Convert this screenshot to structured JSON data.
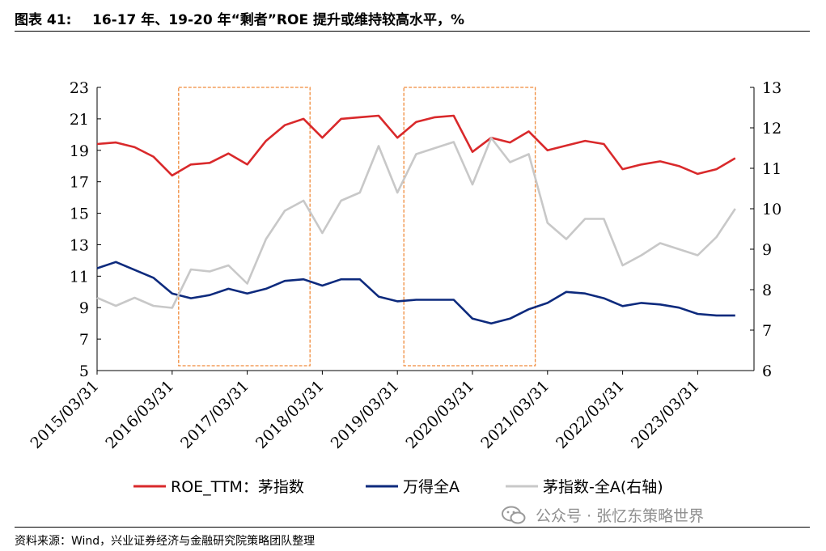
{
  "header": {
    "figure_number": "图表 41:",
    "title": "16-17 年、19-20 年“剩者”ROE 提升或维持较高水平，%"
  },
  "footer": {
    "source": "资料来源：Wind，兴业证券经济与金融研究院策略团队整理"
  },
  "watermark": {
    "text": "公众号 · 张忆东策略世界",
    "icon": "wechat-icon"
  },
  "colors": {
    "red": "#d9292b",
    "navy": "#0d2a7d",
    "gray": "#c8c8c8",
    "highlight": "#f08a3a"
  },
  "chart_data": {
    "type": "line",
    "x_tick_labels": [
      "2015/03/31",
      "2016/03/31",
      "2017/03/31",
      "2018/03/31",
      "2019/03/31",
      "2020/03/31",
      "2021/03/31",
      "2022/03/31",
      "2023/03/31"
    ],
    "x": [
      "2015Q1",
      "2015Q2",
      "2015Q3",
      "2015Q4",
      "2016Q1",
      "2016Q2",
      "2016Q3",
      "2016Q4",
      "2017Q1",
      "2017Q2",
      "2017Q3",
      "2017Q4",
      "2018Q1",
      "2018Q2",
      "2018Q3",
      "2018Q4",
      "2019Q1",
      "2019Q2",
      "2019Q3",
      "2019Q4",
      "2020Q1",
      "2020Q2",
      "2020Q3",
      "2020Q4",
      "2021Q1",
      "2021Q2",
      "2021Q3",
      "2021Q4",
      "2022Q1",
      "2022Q2",
      "2022Q3",
      "2022Q4",
      "2023Q1",
      "2023Q2",
      "2023Q3"
    ],
    "y_left": {
      "min": 5,
      "max": 23,
      "ticks": [
        5,
        7,
        9,
        11,
        13,
        15,
        17,
        19,
        21,
        23
      ]
    },
    "y_right": {
      "min": 6,
      "max": 13,
      "ticks": [
        6,
        7,
        8,
        9,
        10,
        11,
        12,
        13
      ]
    },
    "series": [
      {
        "name": "ROE_TTM：茅指数",
        "axis": "left",
        "color": "red",
        "values": [
          19.4,
          19.5,
          19.2,
          18.6,
          17.4,
          18.1,
          18.2,
          18.8,
          18.1,
          19.6,
          20.6,
          21.0,
          19.8,
          21.0,
          21.1,
          21.2,
          19.8,
          20.8,
          21.1,
          21.2,
          18.9,
          19.8,
          19.5,
          20.2,
          19.0,
          19.3,
          19.6,
          19.4,
          17.8,
          18.1,
          18.3,
          18.0,
          17.5,
          17.8,
          18.5
        ]
      },
      {
        "name": "万得全A",
        "axis": "left",
        "color": "navy",
        "values": [
          11.5,
          11.9,
          11.4,
          10.9,
          9.9,
          9.6,
          9.8,
          10.2,
          9.9,
          10.2,
          10.7,
          10.8,
          10.4,
          10.8,
          10.8,
          9.7,
          9.4,
          9.5,
          9.5,
          9.5,
          8.3,
          8.0,
          8.3,
          8.9,
          9.3,
          10.0,
          9.9,
          9.6,
          9.1,
          9.3,
          9.2,
          9.0,
          8.6,
          8.5,
          8.5
        ]
      },
      {
        "name": "茅指数-全A(右轴)",
        "axis": "right",
        "color": "gray",
        "values": [
          7.8,
          7.6,
          7.8,
          7.6,
          7.55,
          8.5,
          8.45,
          8.6,
          8.15,
          9.25,
          9.95,
          10.2,
          9.4,
          10.2,
          10.4,
          11.55,
          10.4,
          11.35,
          11.5,
          11.65,
          10.6,
          11.75,
          11.15,
          11.35,
          9.65,
          9.25,
          9.75,
          9.75,
          8.6,
          8.85,
          9.15,
          9.0,
          8.85,
          9.3,
          10.0
        ]
      }
    ],
    "highlight_periods": [
      {
        "from": "2016Q1",
        "to": "2017Q4"
      },
      {
        "from": "2019Q1",
        "to": "2020Q4"
      }
    ],
    "legend_position": "bottom",
    "grid": false
  }
}
